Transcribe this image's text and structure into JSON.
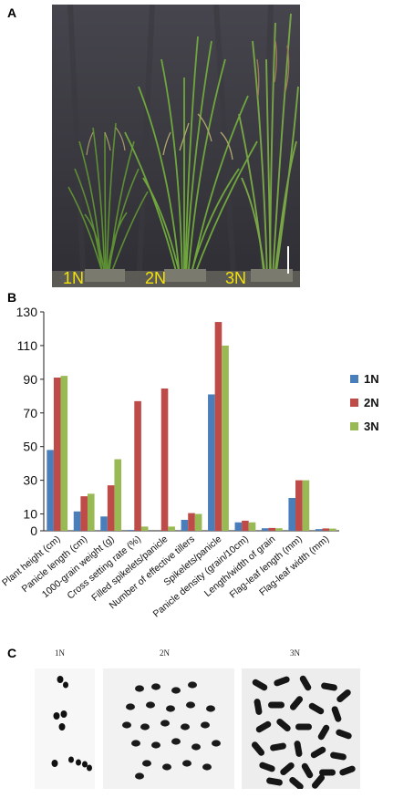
{
  "panels": {
    "a_label": "A",
    "b_label": "B",
    "c_label": "C"
  },
  "photo": {
    "plant_labels": [
      "1N",
      "2N",
      "3N"
    ],
    "label_color": "#f2e20a",
    "backdrop_color": "#3c3b42"
  },
  "chart_data": {
    "type": "bar",
    "categories": [
      "Plant height (cm)",
      "Panicle length (cm)",
      "1000-grain weight (g)",
      "Cross setting rate (%)",
      "Filled spikelets/panicle",
      "Number of effective tillers",
      "Spikelets/panicle",
      "Panicle density (grain/10cm)",
      "Length/width of grain",
      "Flag-leaf length (mm)",
      "Flag-leaf width (mm)"
    ],
    "series": [
      {
        "name": "1N",
        "color": "#4a7ebb",
        "values": [
          48,
          11.5,
          8.5,
          0.5,
          0,
          6.5,
          81,
          5,
          1.5,
          19.5,
          1
        ]
      },
      {
        "name": "2N",
        "color": "#be4b48",
        "values": [
          91,
          20.5,
          27,
          77,
          84.5,
          10.5,
          124,
          6,
          1.7,
          30,
          1.4
        ]
      },
      {
        "name": "3N",
        "color": "#98b954",
        "values": [
          92,
          22,
          42.5,
          2.5,
          2.5,
          10,
          110,
          5,
          1.5,
          30,
          1.3
        ]
      }
    ],
    "yticks": [
      0,
      10,
      30,
      50,
      70,
      90,
      110,
      130
    ],
    "ylim": [
      0,
      130
    ],
    "legend_position": "right",
    "grid": false
  },
  "karyotype": {
    "labels": [
      "1N",
      "2N",
      "3N"
    ]
  }
}
